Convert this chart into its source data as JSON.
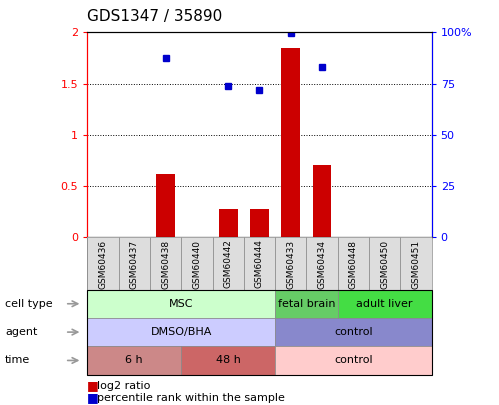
{
  "title": "GDS1347 / 35890",
  "samples": [
    "GSM60436",
    "GSM60437",
    "GSM60438",
    "GSM60440",
    "GSM60442",
    "GSM60444",
    "GSM60433",
    "GSM60434",
    "GSM60448",
    "GSM60450",
    "GSM60451"
  ],
  "log2_ratio": [
    0,
    0,
    0.62,
    0,
    0.27,
    0.27,
    1.85,
    0.7,
    0,
    0,
    0
  ],
  "percentile_rank": [
    null,
    null,
    0.875,
    null,
    0.74,
    0.72,
    0.995,
    0.83,
    null,
    null,
    null
  ],
  "ylim_left": [
    0,
    2
  ],
  "ylim_right": [
    0,
    100
  ],
  "yticks_left": [
    0,
    0.5,
    1.0,
    1.5,
    2.0
  ],
  "ytick_labels_left": [
    "0",
    "0.5",
    "1",
    "1.5",
    "2"
  ],
  "yticks_right": [
    0,
    25,
    50,
    75,
    100
  ],
  "ytick_labels_right": [
    "0",
    "25",
    "50",
    "75",
    "100%"
  ],
  "bar_color": "#cc0000",
  "dot_color": "#0000cc",
  "cell_type_groups": [
    {
      "label": "MSC",
      "start": 0,
      "end": 6,
      "color": "#ccffcc"
    },
    {
      "label": "fetal brain",
      "start": 6,
      "end": 8,
      "color": "#66cc66"
    },
    {
      "label": "adult liver",
      "start": 8,
      "end": 11,
      "color": "#44dd44"
    }
  ],
  "agent_groups": [
    {
      "label": "DMSO/BHA",
      "start": 0,
      "end": 6,
      "color": "#ccccff"
    },
    {
      "label": "control",
      "start": 6,
      "end": 11,
      "color": "#8888cc"
    }
  ],
  "time_groups": [
    {
      "label": "6 h",
      "start": 0,
      "end": 3,
      "color": "#cc8888"
    },
    {
      "label": "48 h",
      "start": 3,
      "end": 6,
      "color": "#cc6666"
    },
    {
      "label": "control",
      "start": 6,
      "end": 11,
      "color": "#ffcccc"
    }
  ],
  "row_labels": [
    "cell type",
    "agent",
    "time"
  ],
  "legend_red_label": "log2 ratio",
  "legend_blue_label": "percentile rank within the sample"
}
